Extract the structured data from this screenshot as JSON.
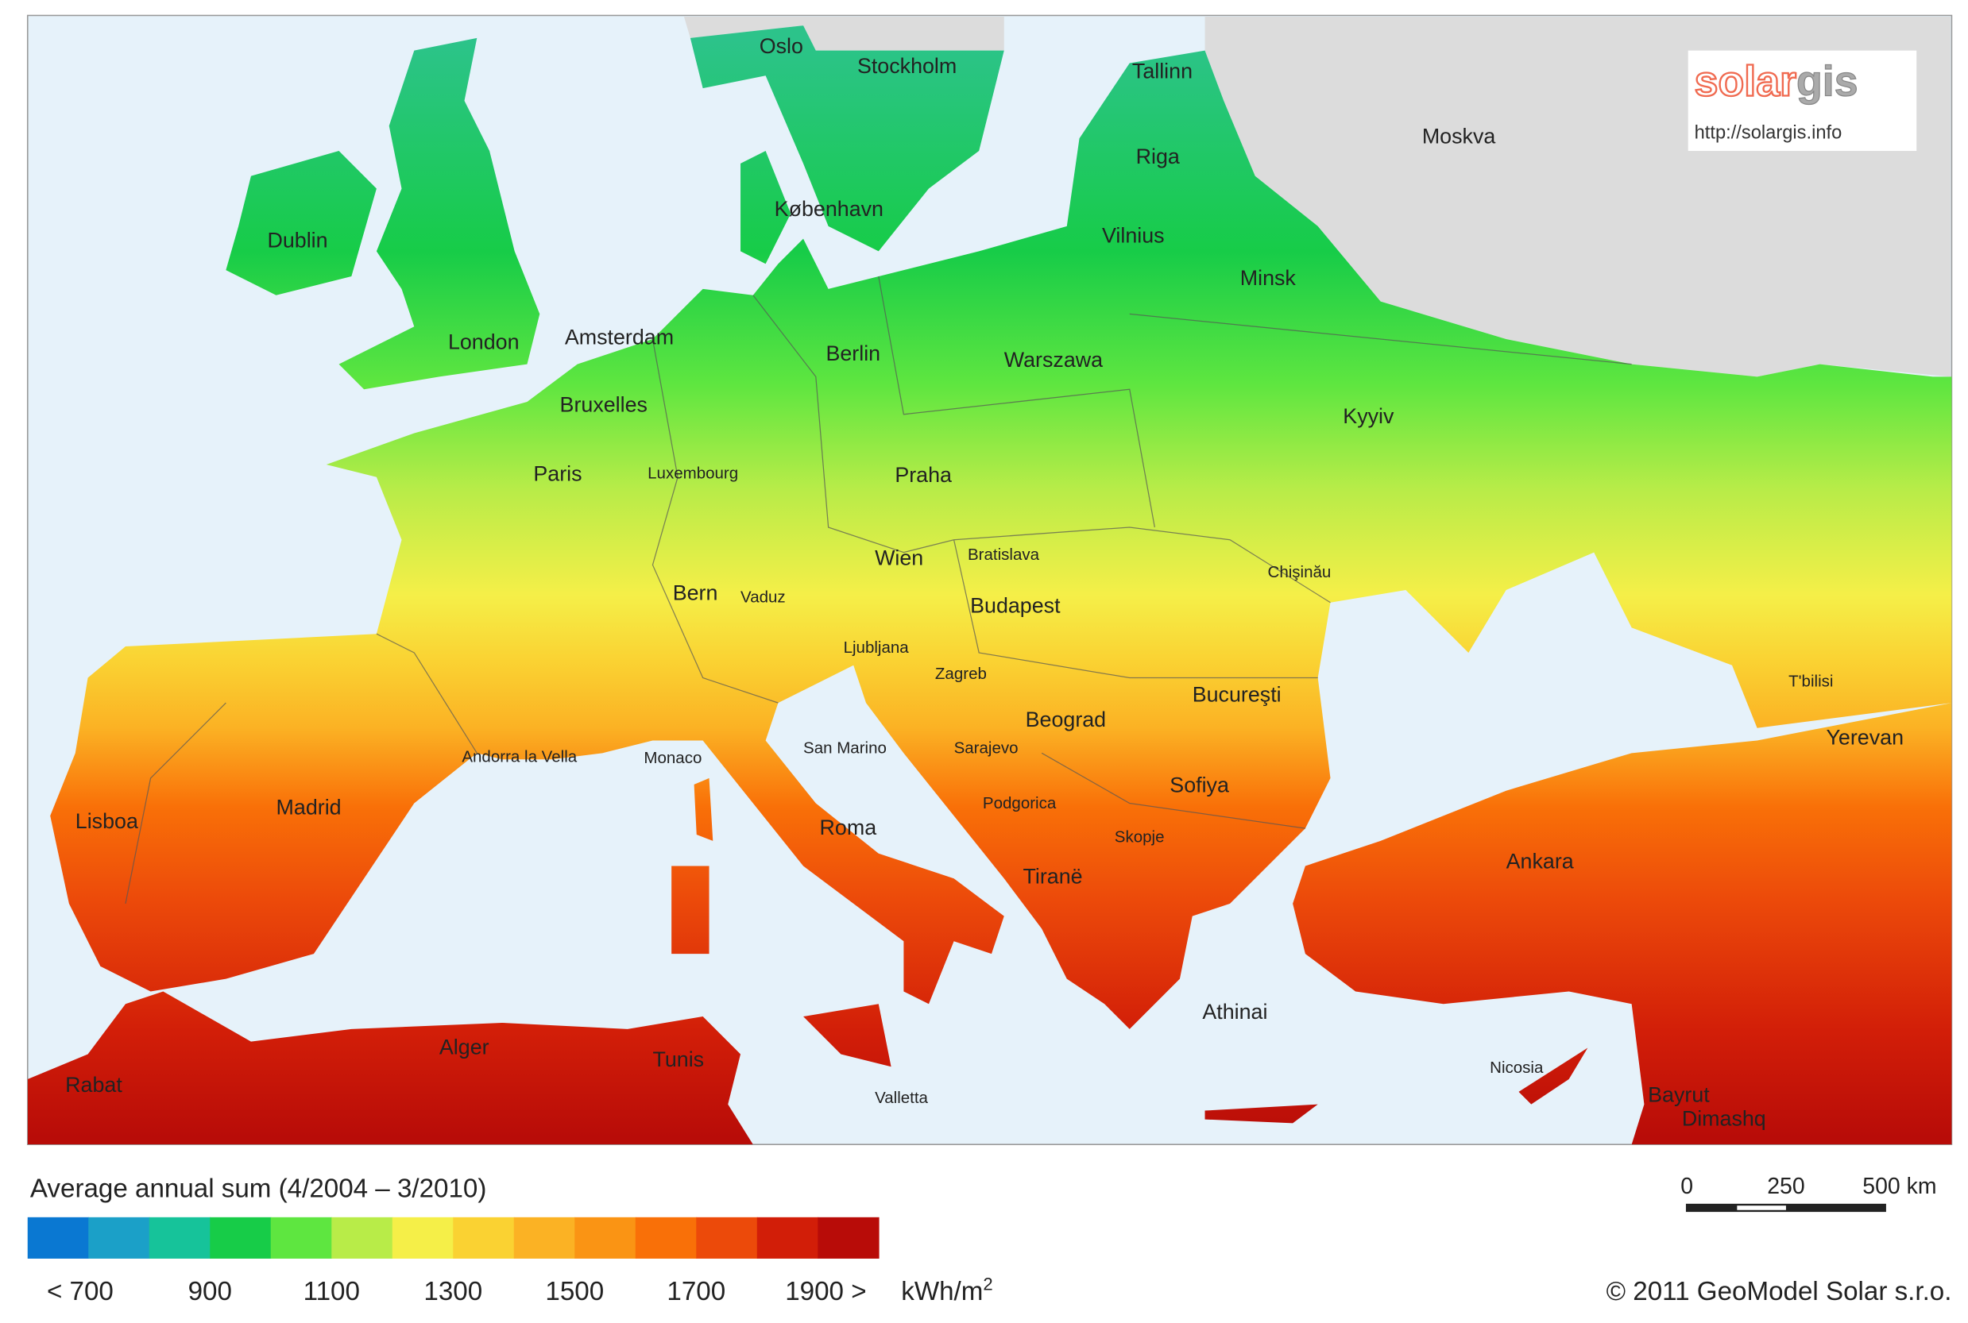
{
  "map": {
    "cities": [
      "Oslo",
      "Stockholm",
      "Tallinn",
      "Moskva",
      "Riga",
      "Dublin",
      "København",
      "Vilnius",
      "Minsk",
      "London",
      "Amsterdam",
      "Berlin",
      "Warszawa",
      "Bruxelles",
      "Kyyiv",
      "Paris",
      "Luxembourg",
      "Praha",
      "Wien",
      "Bratislava",
      "Chişinău",
      "Bern",
      "Vaduz",
      "Budapest",
      "Ljubljana",
      "Zagreb",
      "T'bilisi",
      "Bucureşti",
      "Beograd",
      "Yerevan",
      "San Marino",
      "Andorra la Vella",
      "Monaco",
      "Sarajevo",
      "Lisboa",
      "Madrid",
      "Sofiya",
      "Podgorica",
      "Roma",
      "Skopje",
      "Ankara",
      "Tiranë",
      "Athinai",
      "Alger",
      "Tunis",
      "Nicosia",
      "Rabat",
      "Valletta",
      "Bayrut",
      "Dimashq"
    ],
    "logo": {
      "part1": "solar",
      "part2": "gis",
      "url": "http://solargis.info"
    },
    "legend": {
      "title": "Average annual sum (4/2004 – 3/2010)",
      "colors": [
        "#0a78d2",
        "#1ba0c8",
        "#16c39a",
        "#17cc48",
        "#5ee640",
        "#b8ec48",
        "#f5ef48",
        "#fad232",
        "#fbb224",
        "#fa9414",
        "#f97008",
        "#ec4a0a",
        "#d21e08",
        "#b80c08"
      ],
      "ticks": [
        "< 700",
        "900",
        "1100",
        "1300",
        "1500",
        "1700",
        "1900 >"
      ],
      "unit": "kWh/m",
      "unit_sup": "2"
    },
    "scale_bar": [
      "0",
      "250",
      "500 km"
    ],
    "copyright": "© 2011 GeoModel Solar s.r.o."
  }
}
